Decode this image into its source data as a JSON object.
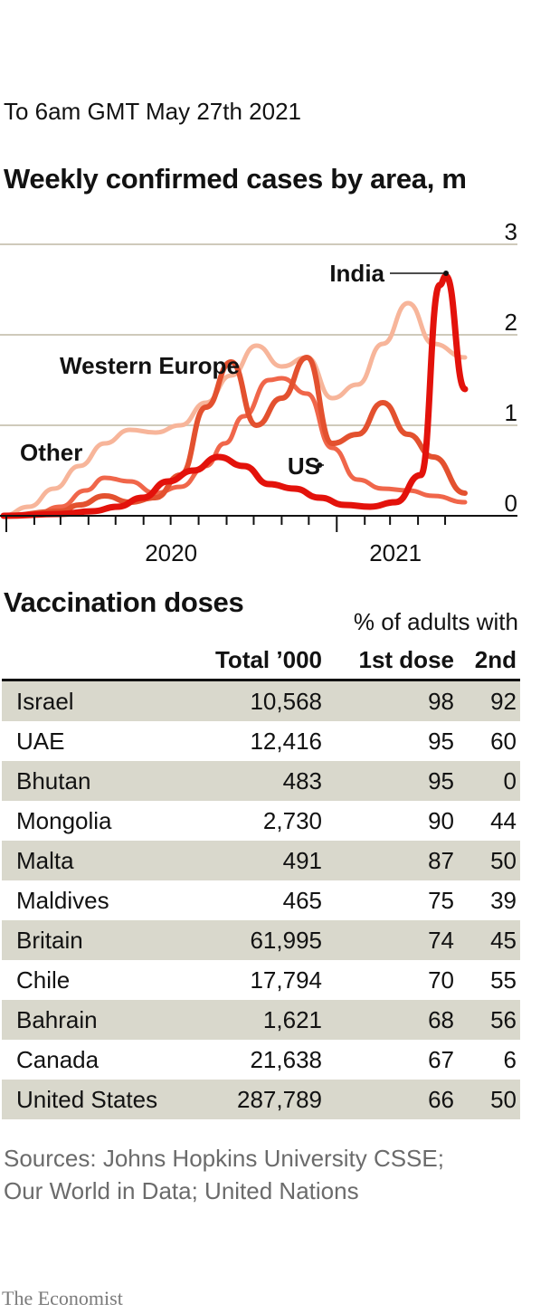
{
  "header": {
    "date": "To 6am GMT May 27th 2021",
    "title": "Weekly confirmed cases by area, m"
  },
  "chart_data": {
    "type": "line",
    "title": "Weekly confirmed cases by area, m",
    "ylim": [
      0,
      3
    ],
    "y_ticks": [
      "0",
      "1",
      "2",
      "3"
    ],
    "x_ticks": [
      "2020",
      "2021"
    ],
    "grid": true,
    "x_period": [
      "2019-12-29",
      "2021-05-23"
    ],
    "series": [
      {
        "name": "Other",
        "color": "#f7b59a",
        "x": [
          "2019-12-29",
          "2020-01-26",
          "2020-02-23",
          "2020-03-22",
          "2020-04-19",
          "2020-05-17",
          "2020-06-14",
          "2020-07-12",
          "2020-08-09",
          "2020-09-06",
          "2020-10-04",
          "2020-11-01",
          "2020-11-29",
          "2020-12-27",
          "2021-01-24",
          "2021-02-21",
          "2021-03-21",
          "2021-04-18",
          "2021-05-23"
        ],
        "values": [
          0,
          0.1,
          0.3,
          0.55,
          0.8,
          0.95,
          0.92,
          1.0,
          1.25,
          1.55,
          1.88,
          1.65,
          1.75,
          1.3,
          1.45,
          1.9,
          2.35,
          1.9,
          1.75
        ]
      },
      {
        "name": "Western Europe",
        "color": "#f0664a",
        "x": [
          "2019-12-29",
          "2020-02-02",
          "2020-03-01",
          "2020-03-29",
          "2020-04-19",
          "2020-05-17",
          "2020-06-14",
          "2020-07-12",
          "2020-08-09",
          "2020-08-30",
          "2020-09-20",
          "2020-10-18",
          "2020-11-01",
          "2020-11-29",
          "2020-12-27",
          "2021-01-24",
          "2021-02-21",
          "2021-03-21",
          "2021-04-18",
          "2021-05-23"
        ],
        "values": [
          0,
          0.02,
          0.1,
          0.28,
          0.42,
          0.38,
          0.25,
          0.32,
          0.55,
          0.8,
          1.1,
          1.5,
          1.52,
          1.35,
          0.75,
          0.4,
          0.3,
          0.28,
          0.22,
          0.15
        ]
      },
      {
        "name": "US",
        "color": "#e3512f",
        "x": [
          "2019-12-29",
          "2020-03-01",
          "2020-03-22",
          "2020-04-19",
          "2020-05-17",
          "2020-06-14",
          "2020-07-12",
          "2020-08-09",
          "2020-09-06",
          "2020-10-04",
          "2020-11-01",
          "2020-11-29",
          "2020-12-27",
          "2021-01-24",
          "2021-02-21",
          "2021-03-21",
          "2021-04-18",
          "2021-05-23"
        ],
        "values": [
          0,
          0.05,
          0.12,
          0.22,
          0.15,
          0.2,
          0.45,
          1.2,
          1.7,
          1.0,
          1.3,
          1.75,
          0.8,
          0.9,
          1.25,
          0.9,
          0.65,
          0.25
        ]
      },
      {
        "name": "India",
        "color": "#e3120b",
        "x": [
          "2019-12-29",
          "2020-03-01",
          "2020-04-05",
          "2020-05-03",
          "2020-05-31",
          "2020-06-28",
          "2020-07-26",
          "2020-08-23",
          "2020-09-20",
          "2020-10-18",
          "2020-11-15",
          "2020-12-13",
          "2021-01-10",
          "2021-02-07",
          "2021-03-07",
          "2021-04-04",
          "2021-04-25",
          "2021-05-02",
          "2021-05-23"
        ],
        "values": [
          0,
          0.02,
          0.05,
          0.1,
          0.2,
          0.38,
          0.5,
          0.65,
          0.55,
          0.35,
          0.3,
          0.2,
          0.12,
          0.1,
          0.15,
          0.45,
          2.55,
          2.65,
          1.4
        ]
      }
    ],
    "annotations": [
      "India",
      "Western Europe",
      "Other",
      "US"
    ]
  },
  "vaccination": {
    "title": "Vaccination doses",
    "group_header": "% of adults with",
    "columns": [
      "",
      "Total ’000",
      "1st dose",
      "2nd"
    ],
    "rows": [
      [
        "Israel",
        "10,568",
        "98",
        "92"
      ],
      [
        "UAE",
        "12,416",
        "95",
        "60"
      ],
      [
        "Bhutan",
        "483",
        "95",
        "0"
      ],
      [
        "Mongolia",
        "2,730",
        "90",
        "44"
      ],
      [
        "Malta",
        "491",
        "87",
        "50"
      ],
      [
        "Maldives",
        "465",
        "75",
        "39"
      ],
      [
        "Britain",
        "61,995",
        "74",
        "45"
      ],
      [
        "Chile",
        "17,794",
        "70",
        "55"
      ],
      [
        "Bahrain",
        "1,621",
        "68",
        "56"
      ],
      [
        "Canada",
        "21,638",
        "67",
        "6"
      ],
      [
        "United States",
        "287,789",
        "66",
        "50"
      ]
    ],
    "shade_color": "#d9d8cc"
  },
  "footer": {
    "sources_line1": "Sources: Johns Hopkins University CSSE;",
    "sources_line2": "Our World in Data; United Nations",
    "brand": "The Economist"
  }
}
